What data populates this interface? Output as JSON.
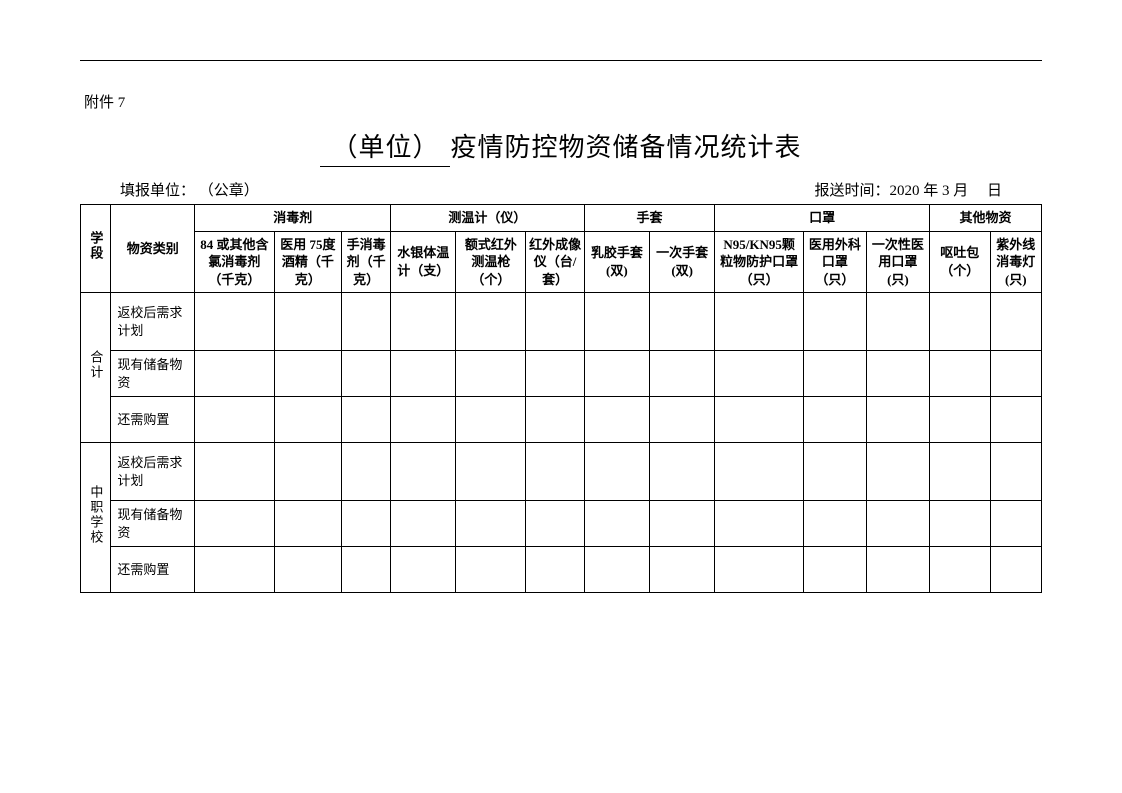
{
  "attachment_label": "附件 7",
  "title_unit": "（单位）",
  "title_rest": "疫情防控物资储备情况统计表",
  "meta": {
    "filler_label": "填报单位：",
    "filler_value": "（公章）",
    "report_label": "报送时间：",
    "report_value": "2020 年 3 月　 日"
  },
  "headers": {
    "stage": "学段",
    "material_type": "物资类别",
    "groups": {
      "disinfectant": "消毒剂",
      "thermometer": "测温计（仪）",
      "gloves": "手套",
      "masks": "口罩",
      "others": "其他物资"
    },
    "cols": {
      "d1": "84 或其他含氯消毒剂（千克）",
      "d2": "医用 75度酒精（千克）",
      "d3": "手消毒剂（千克）",
      "t1": "水银体温计（支）",
      "t2": "额式红外测温枪（个）",
      "t3": "红外成像仪（台/套）",
      "g1": "乳胶手套(双)",
      "g2": "一次手套(双)",
      "m1": "N95/KN95颗粒物防护口罩（只）",
      "m2": "医用外科口罩（只）",
      "m3": "一次性医用口罩(只)",
      "o1": "呕吐包（个）",
      "o2": "紫外线消毒灯(只)"
    }
  },
  "row_groups": [
    {
      "stage": "合计",
      "rows": [
        "返校后需求计划",
        "现有储备物资",
        "还需购置"
      ]
    },
    {
      "stage": "中职学校",
      "rows": [
        "返校后需求计划",
        "现有储备物资",
        "还需购置"
      ]
    }
  ],
  "colors": {
    "border": "#000000",
    "background": "#ffffff",
    "text": "#000000"
  },
  "typography": {
    "body_family": "SimSun",
    "title_size_pt": 20,
    "body_size_pt": 11
  },
  "table_type": "table"
}
